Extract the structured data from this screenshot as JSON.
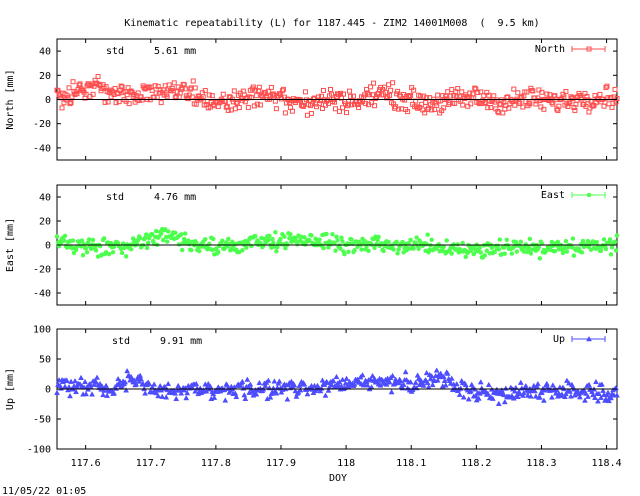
{
  "title": "Kinematic repeatability (L) for 1187.445 - ZIM2 14001M008  (  9.5 km)",
  "footer_timestamp": "11/05/22 01:05",
  "chart_data": [
    {
      "type": "scatter",
      "name": "north",
      "ylabel": "North [mm]",
      "legend": "North",
      "legend_position": "top-right",
      "marker": "square",
      "color": "#ff4d4d",
      "std_label": "std",
      "std_value": "5.61 mm",
      "ylim": [
        -50,
        50
      ],
      "yticks": [
        -40,
        -20,
        0,
        20,
        40
      ],
      "xlim": [
        117.556,
        118.416
      ],
      "zero_line": true,
      "noise": 4.5,
      "trend": [
        [
          117.556,
          4
        ],
        [
          117.58,
          6
        ],
        [
          117.62,
          10
        ],
        [
          117.65,
          2
        ],
        [
          117.7,
          7
        ],
        [
          117.74,
          9
        ],
        [
          117.78,
          0
        ],
        [
          117.82,
          -3
        ],
        [
          117.86,
          5
        ],
        [
          117.9,
          0
        ],
        [
          117.94,
          -4
        ],
        [
          117.98,
          1
        ],
        [
          118.02,
          -2
        ],
        [
          118.05,
          6
        ],
        [
          118.08,
          2
        ],
        [
          118.12,
          -3
        ],
        [
          118.16,
          -1
        ],
        [
          118.2,
          2
        ],
        [
          118.24,
          -3
        ],
        [
          118.28,
          1
        ],
        [
          118.32,
          -2
        ],
        [
          118.36,
          1
        ],
        [
          118.416,
          3
        ]
      ]
    },
    {
      "type": "scatter",
      "name": "east",
      "ylabel": "East [mm]",
      "legend": "East",
      "legend_position": "top-right",
      "marker": "circle",
      "color": "#4dff4d",
      "std_label": "std",
      "std_value": "4.76 mm",
      "ylim": [
        -50,
        50
      ],
      "yticks": [
        -40,
        -20,
        0,
        20,
        40
      ],
      "xlim": [
        117.556,
        118.416
      ],
      "zero_line": true,
      "noise": 3.5,
      "trend": [
        [
          117.556,
          5
        ],
        [
          117.58,
          0
        ],
        [
          117.62,
          -3
        ],
        [
          117.66,
          -1
        ],
        [
          117.7,
          4
        ],
        [
          117.73,
          8
        ],
        [
          117.76,
          2
        ],
        [
          117.8,
          -3
        ],
        [
          117.84,
          0
        ],
        [
          117.88,
          3
        ],
        [
          117.92,
          5
        ],
        [
          117.96,
          3
        ],
        [
          118.0,
          0
        ],
        [
          118.04,
          1
        ],
        [
          118.08,
          -2
        ],
        [
          118.12,
          0
        ],
        [
          118.16,
          -3
        ],
        [
          118.2,
          -4
        ],
        [
          118.24,
          -1
        ],
        [
          118.28,
          -3
        ],
        [
          118.32,
          -2
        ],
        [
          118.36,
          -3
        ],
        [
          118.4,
          -1
        ],
        [
          118.416,
          1
        ]
      ]
    },
    {
      "type": "scatter",
      "name": "up",
      "ylabel": "Up [mm]",
      "legend": "Up",
      "legend_position": "top-right",
      "marker": "triangle",
      "color": "#4d4dff",
      "std_label": "std",
      "std_value": "9.91 mm",
      "ylim": [
        -100,
        100
      ],
      "yticks": [
        -100,
        -50,
        0,
        50,
        100
      ],
      "xlim": [
        117.556,
        118.416
      ],
      "zero_line": true,
      "noise": 7,
      "trend": [
        [
          117.556,
          8
        ],
        [
          117.6,
          5
        ],
        [
          117.64,
          2
        ],
        [
          117.67,
          18
        ],
        [
          117.7,
          0
        ],
        [
          117.74,
          -5
        ],
        [
          117.78,
          -3
        ],
        [
          117.82,
          -4
        ],
        [
          117.86,
          0
        ],
        [
          117.9,
          2
        ],
        [
          117.94,
          3
        ],
        [
          117.98,
          6
        ],
        [
          118.02,
          10
        ],
        [
          118.06,
          12
        ],
        [
          118.1,
          8
        ],
        [
          118.14,
          20
        ],
        [
          118.17,
          5
        ],
        [
          118.2,
          -3
        ],
        [
          118.24,
          -8
        ],
        [
          118.28,
          -2
        ],
        [
          118.32,
          -4
        ],
        [
          118.36,
          -2
        ],
        [
          118.4,
          -6
        ],
        [
          118.416,
          -10
        ]
      ]
    }
  ],
  "x_axis": {
    "label": "DOY",
    "ticks": [
      "117.6",
      "117.7",
      "117.8",
      "117.9",
      "118",
      "118.1",
      "118.2",
      "118.3",
      "118.4"
    ],
    "tick_values": [
      117.6,
      117.7,
      117.8,
      117.9,
      118.0,
      118.1,
      118.2,
      118.3,
      118.4
    ]
  }
}
